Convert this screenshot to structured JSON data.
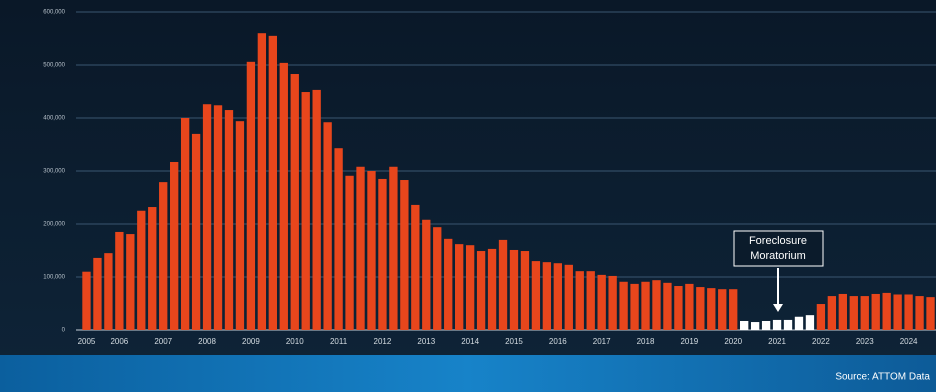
{
  "chart_data": {
    "type": "bar",
    "categories": [
      "2005",
      null,
      null,
      "2006",
      null,
      null,
      null,
      "2007",
      null,
      null,
      null,
      "2008",
      null,
      null,
      null,
      "2009",
      null,
      null,
      null,
      "2010",
      null,
      null,
      null,
      "2011",
      null,
      null,
      null,
      "2012",
      null,
      null,
      null,
      "2013",
      null,
      null,
      null,
      "2014",
      null,
      null,
      null,
      "2015",
      null,
      null,
      null,
      "2016",
      null,
      null,
      null,
      "2017",
      null,
      null,
      null,
      "2018",
      null,
      null,
      null,
      "2019",
      null,
      null,
      null,
      "2020",
      null,
      null,
      null,
      "2021",
      null,
      null,
      null,
      "2022",
      null,
      null,
      null,
      "2023",
      null,
      null,
      null,
      "2024",
      null,
      null
    ],
    "values": [
      110000,
      136000,
      145000,
      185000,
      181000,
      225000,
      232000,
      279000,
      317000,
      400000,
      370000,
      426000,
      424000,
      415000,
      394000,
      506000,
      560000,
      555000,
      504000,
      483000,
      449000,
      453000,
      392000,
      343000,
      291000,
      308000,
      300000,
      285000,
      308000,
      283000,
      236000,
      208000,
      194000,
      172000,
      162000,
      160000,
      149000,
      153000,
      170000,
      151000,
      149000,
      130000,
      128000,
      126000,
      123000,
      111000,
      111000,
      104000,
      102000,
      91000,
      87000,
      91000,
      94000,
      89000,
      83000,
      87000,
      81000,
      79000,
      77000,
      77000,
      17000,
      15000,
      17000,
      19000,
      19000,
      25000,
      28000,
      49000,
      64000,
      68000,
      64000,
      64000,
      68000,
      70000,
      67000,
      67000,
      64000,
      62000
    ],
    "colors": [
      "#e8461c",
      "#e8461c",
      "#e8461c",
      "#e8461c",
      "#e8461c",
      "#e8461c",
      "#e8461c",
      "#e8461c",
      "#e8461c",
      "#e8461c",
      "#e8461c",
      "#e8461c",
      "#e8461c",
      "#e8461c",
      "#e8461c",
      "#e8461c",
      "#e8461c",
      "#e8461c",
      "#e8461c",
      "#e8461c",
      "#e8461c",
      "#e8461c",
      "#e8461c",
      "#e8461c",
      "#e8461c",
      "#e8461c",
      "#e8461c",
      "#e8461c",
      "#e8461c",
      "#e8461c",
      "#e8461c",
      "#e8461c",
      "#e8461c",
      "#e8461c",
      "#e8461c",
      "#e8461c",
      "#e8461c",
      "#e8461c",
      "#e8461c",
      "#e8461c",
      "#e8461c",
      "#e8461c",
      "#e8461c",
      "#e8461c",
      "#e8461c",
      "#e8461c",
      "#e8461c",
      "#e8461c",
      "#e8461c",
      "#e8461c",
      "#e8461c",
      "#e8461c",
      "#e8461c",
      "#e8461c",
      "#e8461c",
      "#e8461c",
      "#e8461c",
      "#e8461c",
      "#e8461c",
      "#e8461c",
      "#ffffff",
      "#ffffff",
      "#ffffff",
      "#ffffff",
      "#ffffff",
      "#ffffff",
      "#ffffff",
      "#e8461c",
      "#e8461c",
      "#e8461c",
      "#e8461c",
      "#e8461c",
      "#e8461c",
      "#e8461c",
      "#e8461c",
      "#e8461c",
      "#e8461c",
      "#e8461c"
    ],
    "ylim": [
      0,
      600000
    ],
    "yticks": [
      0,
      {
        "value": 100000,
        "label": "100,000"
      },
      {
        "value": 200000,
        "label": "200,000"
      },
      {
        "value": 300000,
        "label": "300,000"
      },
      {
        "value": 400000,
        "label": "400,000"
      },
      {
        "value": 500000,
        "label": "500,000"
      },
      {
        "value": 600000,
        "label": "600,000"
      }
    ],
    "grid": true,
    "annotation": [
      "Foreclosure",
      "Moratorium"
    ],
    "source": "Source: ATTOM Data"
  }
}
